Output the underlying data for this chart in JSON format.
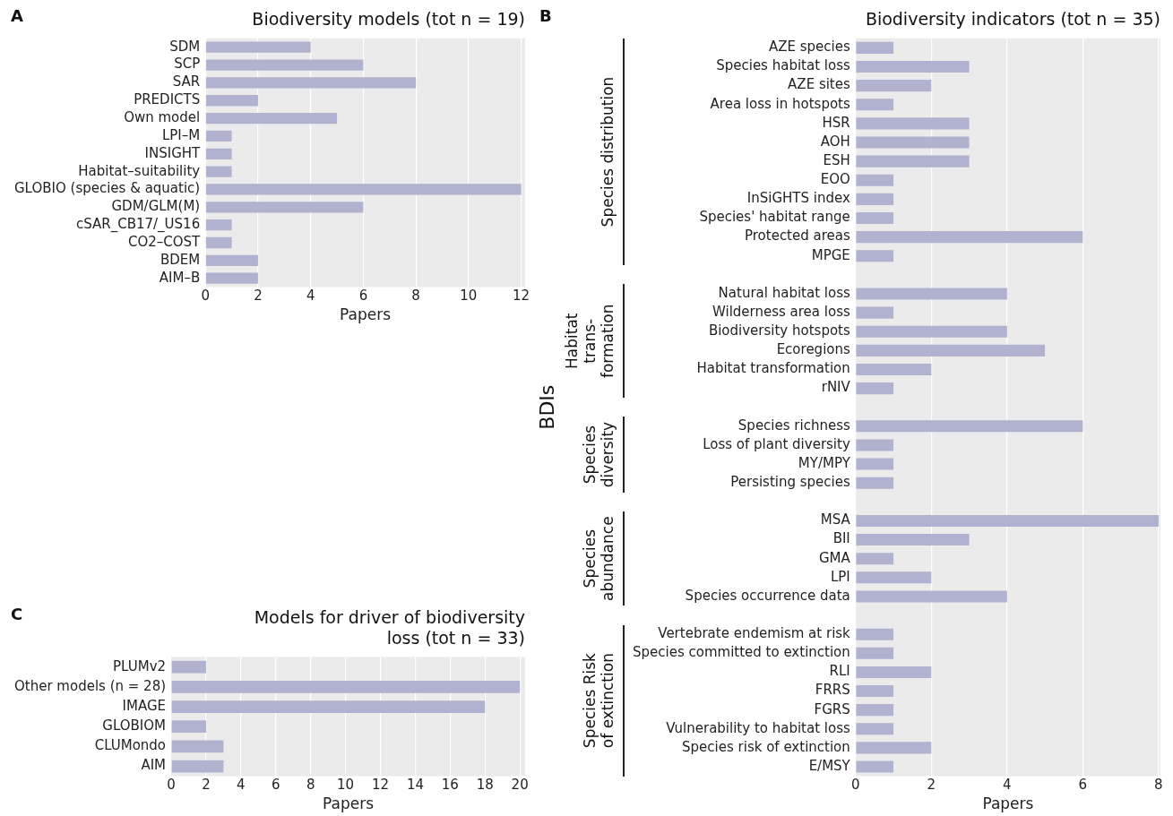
{
  "chart_data": [
    {
      "type": "bar",
      "orientation": "horizontal",
      "title": "Biodiversity models (tot n = 19)",
      "xlabel": "Papers",
      "annotations": [
        "A"
      ],
      "categories": [
        "SDM",
        "SCP",
        "SAR",
        "PREDICTS",
        "Own model",
        "LPI–M",
        "INSIGHT",
        "Habitat–suitability",
        "GLOBIO (species & aquatic)",
        "GDM/GLM(M)",
        "cSAR_CB17/_US16",
        "CO2–COST",
        "BDEM",
        "AIM–B"
      ],
      "values": [
        4,
        6,
        8,
        2,
        5,
        1,
        1,
        1,
        12,
        6,
        1,
        1,
        2,
        2
      ],
      "color": "#b0b2cf",
      "xlim": [
        0,
        12.15
      ],
      "xticks": [
        0,
        2,
        4,
        6,
        8,
        10,
        12
      ],
      "grid": "x",
      "legend": false
    },
    {
      "type": "bar",
      "orientation": "horizontal",
      "title": "Biodiversity indicators (tot n = 35)",
      "xlabel": "Papers",
      "ylabel": "BDIs",
      "annotations": [
        "B",
        "Species distribution",
        "Habitat\ntrans-\nformation",
        "Species\ndiversity",
        "Species\nabundance",
        "Species Risk\nof extinction"
      ],
      "categories": [
        "AZE species",
        "Species habitat loss",
        "AZE sites",
        "Area loss in hotspots",
        "HSR",
        "AOH",
        "ESH",
        "EOO",
        "InSiGHTS index",
        "Species' habitat range",
        "Protected areas",
        "MPGE",
        null,
        "Natural habitat loss",
        "Wilderness area loss",
        "Biodiversity hotspots",
        "Ecoregions",
        "Habitat transformation",
        "rNIV",
        null,
        "Species richness",
        "Loss of plant diversity",
        "MY/MPY",
        "Persisting species",
        null,
        "MSA",
        "BII",
        "GMA",
        "LPI",
        "Species occurrence data",
        null,
        "Vertebrate endemism at risk",
        "Species committed to extinction",
        "RLI",
        "FRRS",
        "FGRS",
        "Vulnerability to habitat loss",
        "Species risk of extinction",
        "E/MSY"
      ],
      "values": [
        1,
        3,
        2,
        1,
        3,
        3,
        3,
        1,
        1,
        1,
        6,
        1,
        null,
        4,
        1,
        4,
        5,
        2,
        1,
        null,
        6,
        1,
        1,
        1,
        null,
        8,
        3,
        1,
        2,
        4,
        null,
        1,
        1,
        2,
        1,
        1,
        1,
        2,
        1
      ],
      "color": "#b0b2cf",
      "xlim": [
        0,
        8.05
      ],
      "xticks": [
        0,
        2,
        4,
        6,
        8
      ],
      "grid": "x",
      "legend": false
    },
    {
      "type": "bar",
      "orientation": "horizontal",
      "title": "Models for driver of biodiversity loss (tot n = 33)",
      "xlabel": "Papers",
      "annotations": [
        "C"
      ],
      "categories": [
        "PLUMv2",
        "Other models (n = 28)",
        "IMAGE",
        "GLOBIOM",
        "CLUMondo",
        "AIM"
      ],
      "values": [
        2,
        20,
        18,
        2,
        3,
        3
      ],
      "color": "#b0b2cf",
      "xlim": [
        0,
        20.3
      ],
      "xticks": [
        0,
        2,
        4,
        6,
        8,
        10,
        12,
        14,
        16,
        18,
        20
      ],
      "grid": "x",
      "legend": false
    }
  ]
}
